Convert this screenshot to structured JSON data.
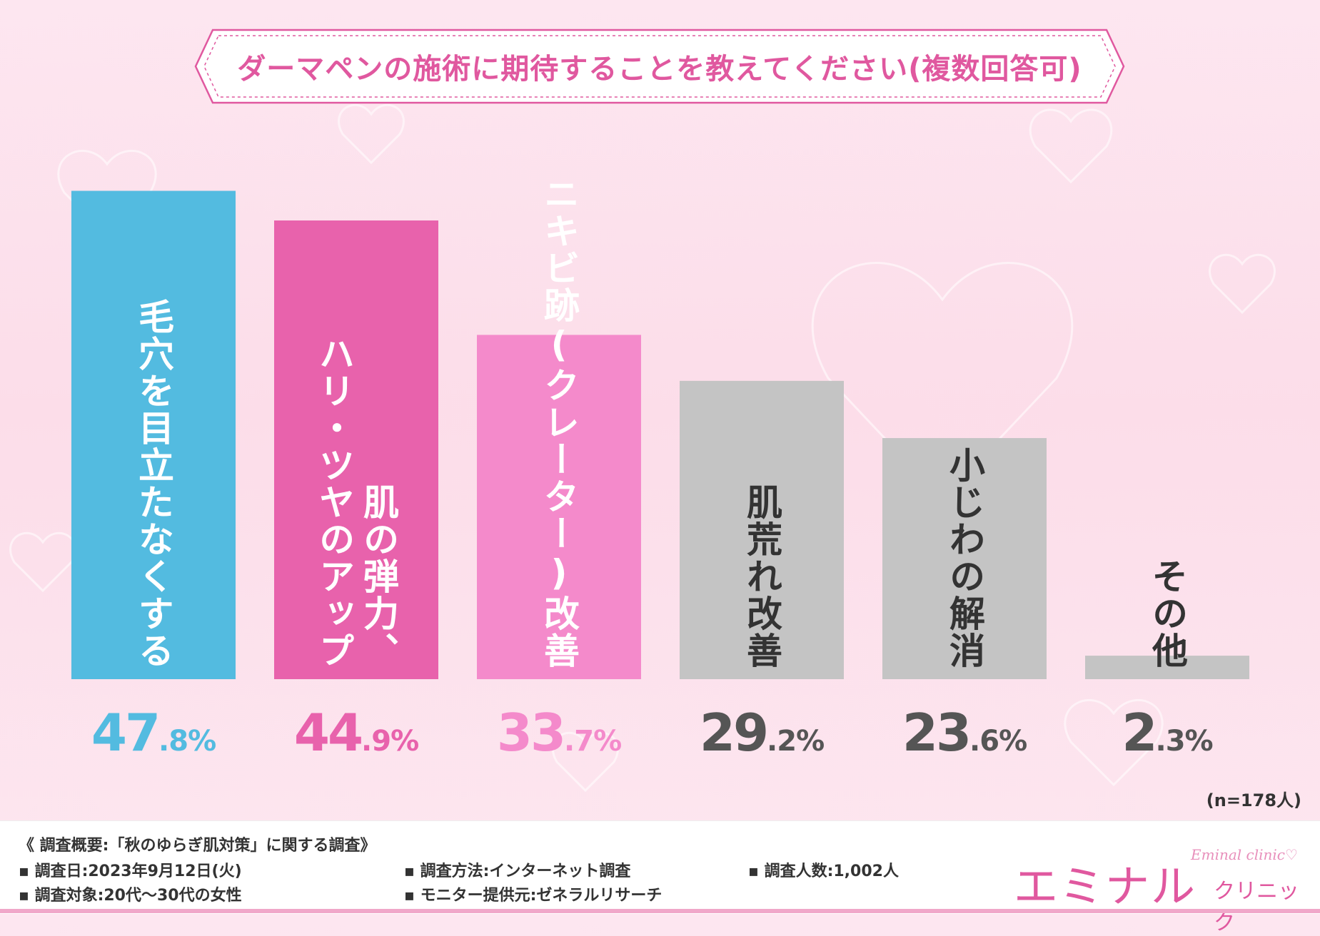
{
  "title": "ダーマペンの施術に期待することを教えてください(複数回答可)",
  "chart_data": {
    "type": "bar",
    "title": "ダーマペンの施術に期待することを教えてください(複数回答可)",
    "categories": [
      "毛穴を目立たなくする",
      "肌の弾力、ハリ・ツヤのアップ",
      "ニキビ跡(クレーター)改善",
      "肌荒れ改善",
      "小じわの解消",
      "その他"
    ],
    "category_columns": [
      [
        "毛穴を目立たなくする"
      ],
      [
        "肌の弾力、",
        "ハリ・ツヤのアップ"
      ],
      [
        "ニキビ跡(クレーター)改善"
      ],
      [
        "肌荒れ改善"
      ],
      [
        "小じわの解消"
      ],
      [
        "その他"
      ]
    ],
    "values": [
      47.8,
      44.9,
      33.7,
      29.2,
      23.6,
      2.3
    ],
    "value_labels": [
      {
        "int": "47",
        "dec": ".8%"
      },
      {
        "int": "44",
        "dec": ".9%"
      },
      {
        "int": "33",
        "dec": ".7%"
      },
      {
        "int": "29",
        "dec": ".2%"
      },
      {
        "int": "23",
        "dec": ".6%"
      },
      {
        "int": "2",
        "dec": ".3%"
      }
    ],
    "colors": [
      "#53bbe0",
      "#e862ac",
      "#f48acb",
      "#c4c4c4",
      "#c4c4c4",
      "#c4c4c4"
    ],
    "label_colors": [
      "#ffffff",
      "#ffffff",
      "#ffffff",
      "#333333",
      "#333333",
      "#333333"
    ],
    "value_colors": [
      "#53bbe0",
      "#e862ac",
      "#f48acb",
      "#555555",
      "#555555",
      "#555555"
    ],
    "ylim": [
      0,
      50
    ],
    "grid": false,
    "xlabel": "",
    "ylabel": ""
  },
  "note": "(n=178人)",
  "footer": {
    "heading": "《 調査概要:「秋のゆらぎ肌対策」に関する調査》",
    "items": [
      "調査日:2023年9月12日(火)",
      "調査対象:20代〜30代の女性",
      "調査方法:インターネット調査",
      "モニター提供元:ゼネラルリサーチ",
      "調査人数:1,002人"
    ]
  },
  "logo": {
    "main": "エミナル",
    "sub": "クリニック",
    "en": "Eminal clinic♡"
  },
  "colors": {
    "accent": "#e0589f",
    "background": "#fde6f0"
  }
}
